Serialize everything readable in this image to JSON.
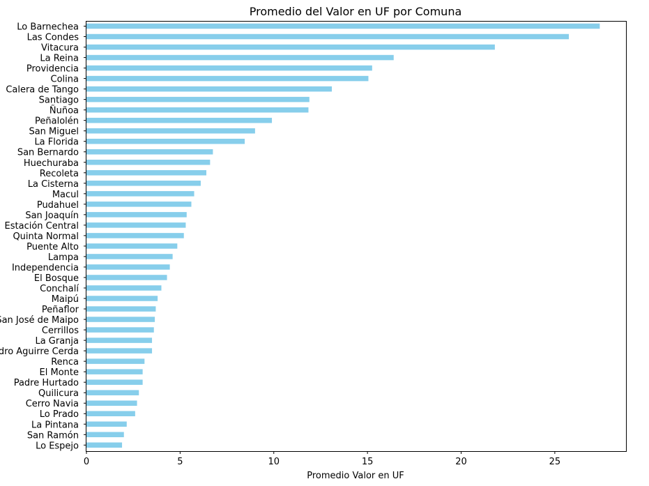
{
  "chart_data": {
    "type": "bar",
    "orientation": "horizontal",
    "title": "Promedio del Valor en UF por Comuna",
    "xlabel": "Promedio Valor en UF",
    "ylabel": "",
    "xlim": [
      0,
      28.8
    ],
    "xticks": [
      0,
      5,
      10,
      15,
      20,
      25
    ],
    "grid": false,
    "bar_color": "#87ceeb",
    "categories": [
      "Lo Barnechea",
      "Las Condes",
      "Vitacura",
      "La Reina",
      "Providencia",
      "Colina",
      "Calera de Tango",
      "Santiago",
      "Ñuñoa",
      "Peñalolén",
      "San Miguel",
      "La Florida",
      "San Bernardo",
      "Huechuraba",
      "Recoleta",
      "La Cisterna",
      "Macul",
      "Pudahuel",
      "San Joaquín",
      "Estación Central",
      "Quinta Normal",
      "Puente Alto",
      "Lampa",
      "Independencia",
      "El Bosque",
      "Conchalí",
      "Maipú",
      "Peñaflor",
      "San José de Maipo",
      "Cerrillos",
      "La Granja",
      "Pedro Aguirre Cerda",
      "Renca",
      "El Monte",
      "Padre Hurtado",
      "Quilicura",
      "Cerro Navia",
      "Lo Prado",
      "La Pintana",
      "San Ramón",
      "Lo Espejo"
    ],
    "values": [
      27.4,
      25.75,
      21.8,
      16.4,
      15.25,
      15.05,
      13.1,
      11.9,
      11.85,
      9.9,
      9.0,
      8.45,
      6.75,
      6.6,
      6.4,
      6.1,
      5.75,
      5.6,
      5.35,
      5.3,
      5.2,
      4.85,
      4.6,
      4.45,
      4.3,
      4.0,
      3.8,
      3.7,
      3.65,
      3.6,
      3.5,
      3.5,
      3.1,
      3.0,
      3.0,
      2.8,
      2.7,
      2.6,
      2.15,
      2.0,
      1.9
    ]
  }
}
